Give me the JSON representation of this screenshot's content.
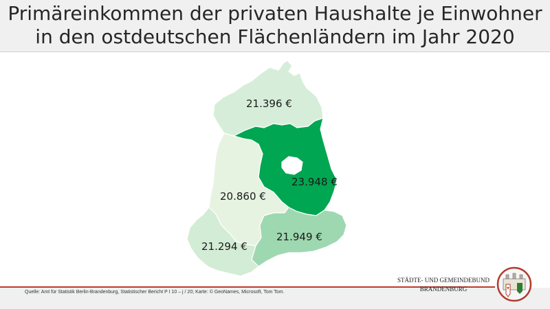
{
  "title": {
    "line1": "Primäreinkommen der privaten Haushalte je Einwohner",
    "line2": "in den ostdeutschen Flächenländern im Jahr 2020"
  },
  "map": {
    "regions": [
      {
        "id": "mecklenburg-vorpommern",
        "value_label": "21.396 €",
        "color": "#d6eed9"
      },
      {
        "id": "brandenburg",
        "value_label": "23.948 €",
        "color": "#00a651"
      },
      {
        "id": "sachsen-anhalt",
        "value_label": "20.860 €",
        "color": "#e6f3e1"
      },
      {
        "id": "sachsen",
        "value_label": "21.949 €",
        "color": "#9ed8b0"
      },
      {
        "id": "thueringen",
        "value_label": "21.294 €",
        "color": "#d3ecd5"
      },
      {
        "id": "berlin",
        "value_label": "",
        "color": "#ffffff"
      }
    ]
  },
  "footer": {
    "source": "Quelle: Amt für Statistik Berlin-Brandenburg, Statistischer Bericht P I 10 – j / 20; Karte: © GeoNames, Microsoft, Tom Tom.",
    "org_line1": "STÄDTE- UND GEMEINDEBUND",
    "org_line2": "BRANDENBURG",
    "accent_color": "#c0392b"
  }
}
